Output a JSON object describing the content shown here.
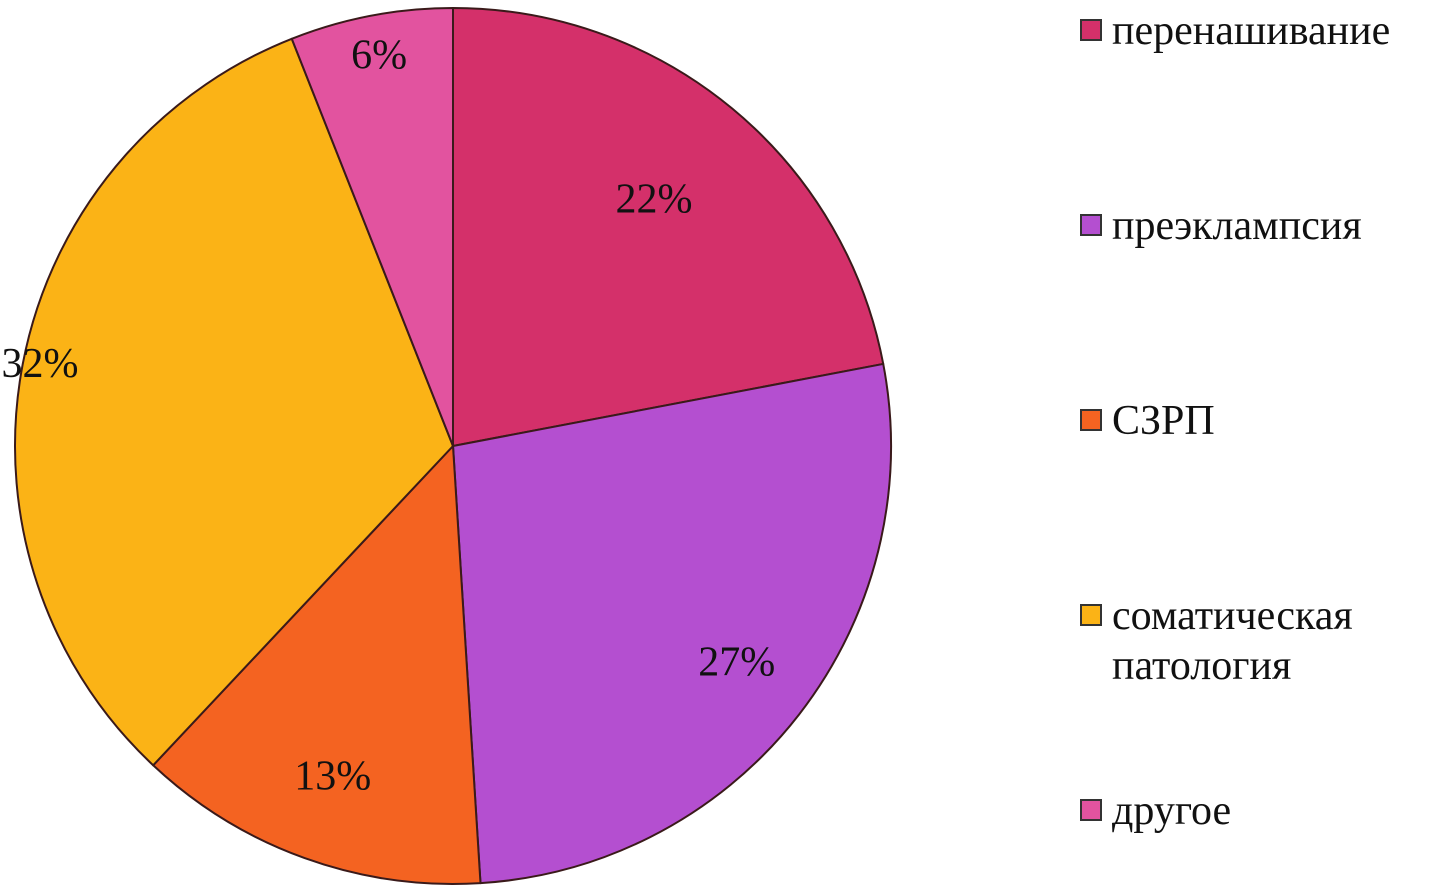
{
  "chart_data": {
    "type": "pie",
    "title": "",
    "legend_position": "right",
    "slices": [
      {
        "label": "перенашивание",
        "value": 22,
        "value_label": "22%",
        "color": "#d4306a"
      },
      {
        "label": "преэклампсия",
        "value": 27,
        "value_label": "27%",
        "color": "#b44fd0"
      },
      {
        "label": "СЗРП",
        "value": 13,
        "value_label": "13%",
        "color": "#f46321"
      },
      {
        "label": "соматическая патология",
        "value": 32,
        "value_label": "32%",
        "color": "#fbb316"
      },
      {
        "label": "другое",
        "value": 6,
        "value_label": "6%",
        "color": "#e2539f"
      }
    ]
  }
}
